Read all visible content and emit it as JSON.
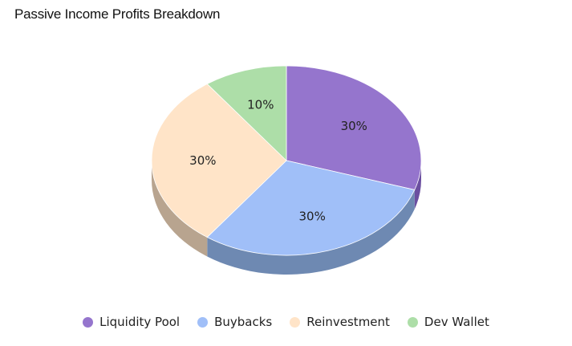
{
  "chart_data": {
    "type": "pie",
    "style": "3d",
    "title": "Passive Income Profits Breakdown",
    "categories": [
      "Liquidity Pool",
      "Buybacks",
      "Reinvestment",
      "Dev Wallet"
    ],
    "values": [
      30,
      30,
      30,
      10
    ],
    "labels": [
      "30%",
      "30%",
      "30%",
      "10%"
    ],
    "colors": [
      "#9575CD",
      "#A0BFF8",
      "#FFE4C8",
      "#ADDEA8"
    ],
    "side_colors": [
      "#6B4FA0",
      "#6E89B2",
      "#B8A48F",
      "#7AA876"
    ],
    "legend_position": "bottom"
  }
}
